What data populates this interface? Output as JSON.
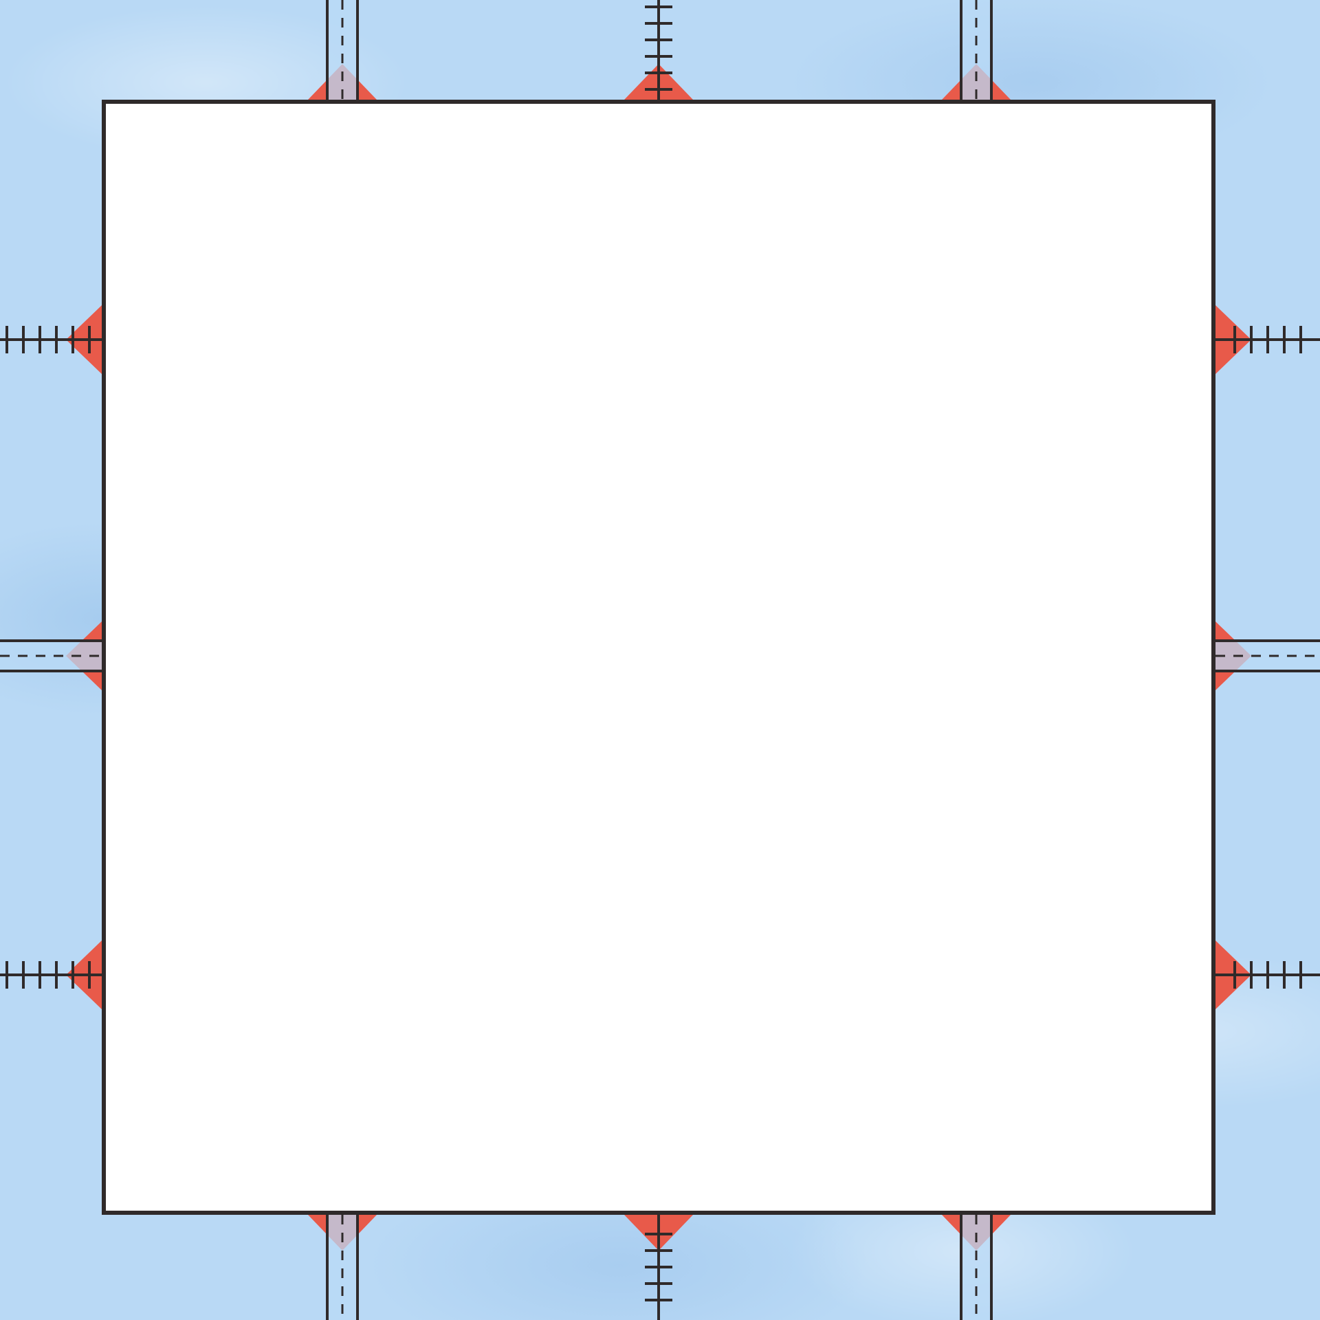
{
  "frame": {
    "background_color": "#b9d9f5",
    "panel_color": "#ffffff",
    "outline_color": "#2f2a2a",
    "connector_color": "#e85a4a"
  },
  "connectors": {
    "top": [
      "road",
      "rail",
      "road"
    ],
    "bottom": [
      "road",
      "rail",
      "road"
    ],
    "left": [
      "rail",
      "road",
      "rail"
    ],
    "right": [
      "rail",
      "road",
      "rail"
    ]
  }
}
